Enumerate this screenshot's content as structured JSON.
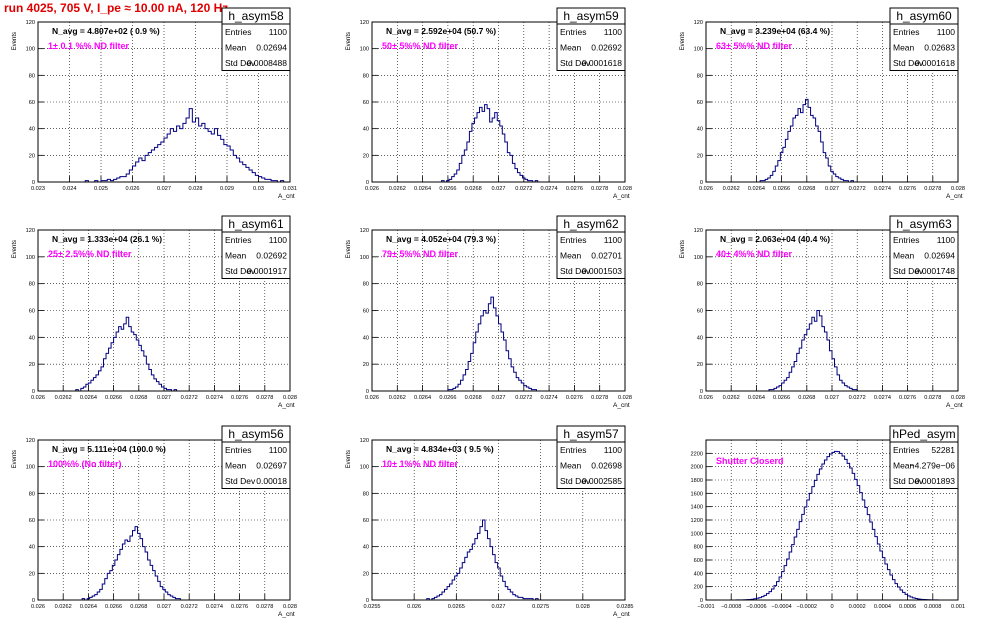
{
  "run_title": "run 4025,   705 V, I_pe ≈ 10.00 nA, 120 Hz",
  "colors": {
    "histogram": "#000080",
    "filter_text": "#ff00ff",
    "title_text": "#e00000",
    "grid": "#000000"
  },
  "chart_data": [
    {
      "type": "bar",
      "name": "h_asym58",
      "ylabel": "Events",
      "xlabel": "A_cnt",
      "navg": "N_avg = 4.807e+02 ( 0.9 %)",
      "filter": "1± 0.1 %% ND filter",
      "stats": [
        [
          "Entries",
          "1100"
        ],
        [
          "Mean",
          "0.02694"
        ],
        [
          "Std Dev",
          "0.0008488"
        ]
      ],
      "xlim": [
        0.023,
        0.031
      ],
      "ylim": [
        0,
        120
      ],
      "xticks": [
        "0.023",
        "0.024",
        "0.025",
        "0.026",
        "0.027",
        "0.028",
        "0.029",
        "0.03",
        "0.031"
      ],
      "yticks": [
        "0",
        "20",
        "40",
        "60",
        "80",
        "100",
        "120"
      ],
      "bin_start": 0.0245,
      "bin_width": 0.0001,
      "values": [
        1,
        0,
        0,
        1,
        0,
        1,
        1,
        2,
        1,
        2,
        3,
        4,
        4,
        6,
        9,
        12,
        15,
        18,
        16,
        20,
        22,
        24,
        26,
        28,
        30,
        33,
        36,
        40,
        38,
        42,
        40,
        44,
        48,
        55,
        45,
        48,
        42,
        44,
        40,
        38,
        36,
        40,
        35,
        32,
        28,
        27,
        24,
        20,
        18,
        15,
        13,
        11,
        9,
        7,
        5,
        4,
        3,
        2,
        2,
        1,
        1,
        0,
        1
      ]
    },
    {
      "type": "bar",
      "name": "h_asym59",
      "ylabel": "Events",
      "xlabel": "A_cnt",
      "navg": "N_avg = 2.592e+04 (50.7 %)",
      "filter": "50± 5%% ND filter",
      "stats": [
        [
          "Entries",
          "1100"
        ],
        [
          "Mean",
          "0.02692"
        ],
        [
          "Std Dev",
          "0.0001618"
        ]
      ],
      "xlim": [
        0.026,
        0.028
      ],
      "ylim": [
        0,
        120
      ],
      "xticks": [
        "0.026",
        "0.0262",
        "0.0264",
        "0.0266",
        "0.0268",
        "0.027",
        "0.0272",
        "0.0274",
        "0.0276",
        "0.0278",
        "0.028"
      ],
      "yticks": [
        "0",
        "20",
        "40",
        "60",
        "80",
        "100",
        "120"
      ],
      "bin_start": 0.02655,
      "bin_width": 2e-05,
      "values": [
        1,
        0,
        1,
        2,
        4,
        6,
        9,
        14,
        20,
        24,
        30,
        38,
        44,
        48,
        52,
        56,
        53,
        58,
        55,
        45,
        48,
        52,
        46,
        42,
        36,
        30,
        22,
        20,
        14,
        10,
        7,
        5,
        3,
        2,
        1,
        1,
        0,
        1
      ]
    },
    {
      "type": "bar",
      "name": "h_asym60",
      "ylabel": "Events",
      "xlabel": "A_cnt",
      "navg": "N_avg = 3.239e+04 (63.4 %)",
      "filter": "63± 5%% ND filter",
      "stats": [
        [
          "Entries",
          "1100"
        ],
        [
          "Mean",
          "0.02683"
        ],
        [
          "Std Dev",
          "0.0001618"
        ]
      ],
      "xlim": [
        0.026,
        0.028
      ],
      "ylim": [
        0,
        120
      ],
      "xticks": [
        "0.026",
        "0.0262",
        "0.0264",
        "0.0266",
        "0.0268",
        "0.027",
        "0.0272",
        "0.0274",
        "0.0276",
        "0.0278",
        "0.028"
      ],
      "yticks": [
        "0",
        "20",
        "40",
        "60",
        "80",
        "100",
        "120"
      ],
      "bin_start": 0.02643,
      "bin_width": 2e-05,
      "values": [
        1,
        1,
        2,
        3,
        5,
        8,
        12,
        16,
        22,
        26,
        32,
        38,
        42,
        48,
        50,
        55,
        52,
        58,
        62,
        56,
        50,
        48,
        42,
        38,
        30,
        22,
        18,
        12,
        8,
        6,
        4,
        3,
        2,
        1,
        1,
        0,
        1
      ]
    },
    {
      "type": "bar",
      "name": "h_asym61",
      "ylabel": "Events",
      "xlabel": "A_cnt",
      "navg": "N_avg = 1.333e+04 (26.1 %)",
      "filter": "25± 2.5%% ND filter",
      "stats": [
        [
          "Entries",
          "1100"
        ],
        [
          "Mean",
          "0.02692"
        ],
        [
          "Std Dev",
          "0.0001917"
        ]
      ],
      "xlim": [
        0.026,
        0.028
      ],
      "ylim": [
        0,
        120
      ],
      "xticks": [
        "0.026",
        "0.0262",
        "0.0264",
        "0.0266",
        "0.0268",
        "0.027",
        "0.0272",
        "0.0274",
        "0.0276",
        "0.0278",
        "0.028"
      ],
      "yticks": [
        "0",
        "20",
        "40",
        "60",
        "80",
        "100",
        "120"
      ],
      "bin_start": 0.0263,
      "bin_width": 2e-05,
      "values": [
        1,
        0,
        2,
        3,
        5,
        6,
        8,
        10,
        12,
        15,
        18,
        24,
        28,
        32,
        36,
        40,
        44,
        48,
        46,
        50,
        55,
        48,
        44,
        42,
        38,
        34,
        30,
        26,
        20,
        16,
        12,
        9,
        7,
        5,
        3,
        2,
        1,
        1,
        0,
        1
      ]
    },
    {
      "type": "bar",
      "name": "h_asym62",
      "ylabel": "Events",
      "xlabel": "A_cnt",
      "navg": "N_avg = 4.052e+04 (79.3 %)",
      "filter": "79± 5%% ND filter",
      "stats": [
        [
          "Entries",
          "1100"
        ],
        [
          "Mean",
          "0.02701"
        ],
        [
          "Std Dev",
          "0.0001503"
        ]
      ],
      "xlim": [
        0.026,
        0.028
      ],
      "ylim": [
        0,
        120
      ],
      "xticks": [
        "0.026",
        "0.0262",
        "0.0264",
        "0.0266",
        "0.0268",
        "0.027",
        "0.0272",
        "0.0274",
        "0.0276",
        "0.0278",
        "0.028"
      ],
      "yticks": [
        "0",
        "20",
        "40",
        "60",
        "80",
        "100",
        "120"
      ],
      "bin_start": 0.0266,
      "bin_width": 2e-05,
      "values": [
        1,
        1,
        2,
        3,
        5,
        8,
        12,
        16,
        22,
        28,
        36,
        44,
        50,
        56,
        60,
        58,
        65,
        70,
        62,
        56,
        50,
        44,
        38,
        30,
        24,
        18,
        14,
        10,
        8,
        6,
        4,
        3,
        2,
        1,
        1
      ]
    },
    {
      "type": "bar",
      "name": "h_asym63",
      "ylabel": "Events",
      "xlabel": "A_cnt",
      "navg": "N_avg = 2.063e+04 (40.4 %)",
      "filter": "40± 4%% ND filter",
      "stats": [
        [
          "Entries",
          "1100"
        ],
        [
          "Mean",
          "0.02694"
        ],
        [
          "Std Dev",
          "0.0001748"
        ]
      ],
      "xlim": [
        0.026,
        0.028
      ],
      "ylim": [
        0,
        120
      ],
      "xticks": [
        "0.026",
        "0.0262",
        "0.0264",
        "0.0266",
        "0.0268",
        "0.027",
        "0.0272",
        "0.0274",
        "0.0276",
        "0.0278",
        "0.028"
      ],
      "yticks": [
        "0",
        "20",
        "40",
        "60",
        "80",
        "100",
        "120"
      ],
      "bin_start": 0.0265,
      "bin_width": 2e-05,
      "values": [
        1,
        1,
        2,
        3,
        4,
        6,
        8,
        10,
        14,
        18,
        22,
        28,
        32,
        38,
        42,
        46,
        50,
        55,
        52,
        60,
        56,
        48,
        44,
        38,
        30,
        24,
        18,
        12,
        8,
        6,
        4,
        3,
        2,
        1,
        1
      ]
    },
    {
      "type": "bar",
      "name": "h_asym56",
      "ylabel": "Events",
      "xlabel": "A_cnt",
      "navg": "N_avg = 5.111e+04 (100.0 %)",
      "filter": "100%% (No filter)",
      "stats": [
        [
          "Entries",
          "1100"
        ],
        [
          "Mean",
          "0.02697"
        ],
        [
          "Std Dev",
          "0.00018"
        ]
      ],
      "xlim": [
        0.026,
        0.028
      ],
      "ylim": [
        0,
        120
      ],
      "xticks": [
        "0.026",
        "0.0262",
        "0.0264",
        "0.0266",
        "0.0268",
        "0.027",
        "0.0272",
        "0.0274",
        "0.0276",
        "0.0278",
        "0.028"
      ],
      "yticks": [
        "0",
        "20",
        "40",
        "60",
        "80",
        "100",
        "120"
      ],
      "bin_start": 0.02635,
      "bin_width": 2e-05,
      "values": [
        1,
        0,
        1,
        2,
        3,
        4,
        6,
        8,
        12,
        16,
        20,
        22,
        26,
        30,
        34,
        38,
        42,
        45,
        44,
        48,
        52,
        55,
        50,
        46,
        40,
        36,
        30,
        26,
        22,
        18,
        14,
        10,
        8,
        6,
        4,
        3,
        2,
        1,
        1
      ]
    },
    {
      "type": "bar",
      "name": "h_asym57",
      "ylabel": "Events",
      "xlabel": "A_cnt",
      "navg": "N_avg = 4.834e+03 ( 9.5 %)",
      "filter": "10± 1%% ND filter",
      "stats": [
        [
          "Entries",
          "1100"
        ],
        [
          "Mean",
          "0.02698"
        ],
        [
          "Std Dev",
          "0.0002585"
        ]
      ],
      "xlim": [
        0.0255,
        0.0285
      ],
      "ylim": [
        0,
        120
      ],
      "xticks": [
        "0.0255",
        "0.026",
        "0.0265",
        "0.027",
        "0.0275",
        "0.028",
        "0.0285"
      ],
      "yticks": [
        "0",
        "20",
        "40",
        "60",
        "80",
        "100",
        "120"
      ],
      "bin_start": 0.02615,
      "bin_width": 3e-05,
      "values": [
        1,
        0,
        1,
        2,
        3,
        4,
        6,
        8,
        10,
        12,
        15,
        18,
        20,
        24,
        28,
        32,
        36,
        38,
        42,
        46,
        50,
        55,
        60,
        52,
        46,
        40,
        34,
        28,
        24,
        18,
        14,
        10,
        8,
        6,
        4,
        3,
        2,
        2,
        1,
        1,
        1,
        1,
        0,
        1
      ]
    },
    {
      "type": "bar",
      "name": "hPed_asym",
      "ylabel": "",
      "xlabel": "",
      "navg": "",
      "filter": "Shutter Closerd",
      "stats": [
        [
          "Entries",
          "52281"
        ],
        [
          "Mean",
          "−4.279e−06"
        ],
        [
          "Std Dev",
          "0.0001893"
        ]
      ],
      "xlim": [
        -0.001,
        0.001
      ],
      "ylim": [
        0,
        2400
      ],
      "xticks": [
        "−0.001",
        "−0.0008",
        "−0.0006",
        "−0.0004",
        "−0.0002",
        "0",
        "0.0002",
        "0.0004",
        "0.0006",
        "0.0008",
        "0.001"
      ],
      "yticks": [
        "0",
        "200",
        "400",
        "600",
        "800",
        "1000",
        "1200",
        "1400",
        "1600",
        "1800",
        "2000",
        "2200"
      ],
      "bin_start": -0.00076,
      "bin_width": 2e-05,
      "values": [
        1,
        1,
        2,
        3,
        5,
        8,
        12,
        18,
        26,
        36,
        50,
        70,
        95,
        125,
        165,
        215,
        275,
        345,
        425,
        515,
        615,
        720,
        830,
        945,
        1060,
        1175,
        1285,
        1395,
        1500,
        1600,
        1700,
        1795,
        1885,
        1965,
        2040,
        2100,
        2150,
        2190,
        2215,
        2230,
        2225,
        2200,
        2160,
        2110,
        2050,
        1980,
        1900,
        1810,
        1715,
        1610,
        1500,
        1390,
        1280,
        1170,
        1060,
        950,
        840,
        735,
        635,
        540,
        455,
        375,
        305,
        245,
        195,
        150,
        115,
        85,
        62,
        45,
        32,
        22,
        15,
        10,
        7,
        5,
        3,
        2,
        1,
        1
      ]
    }
  ]
}
